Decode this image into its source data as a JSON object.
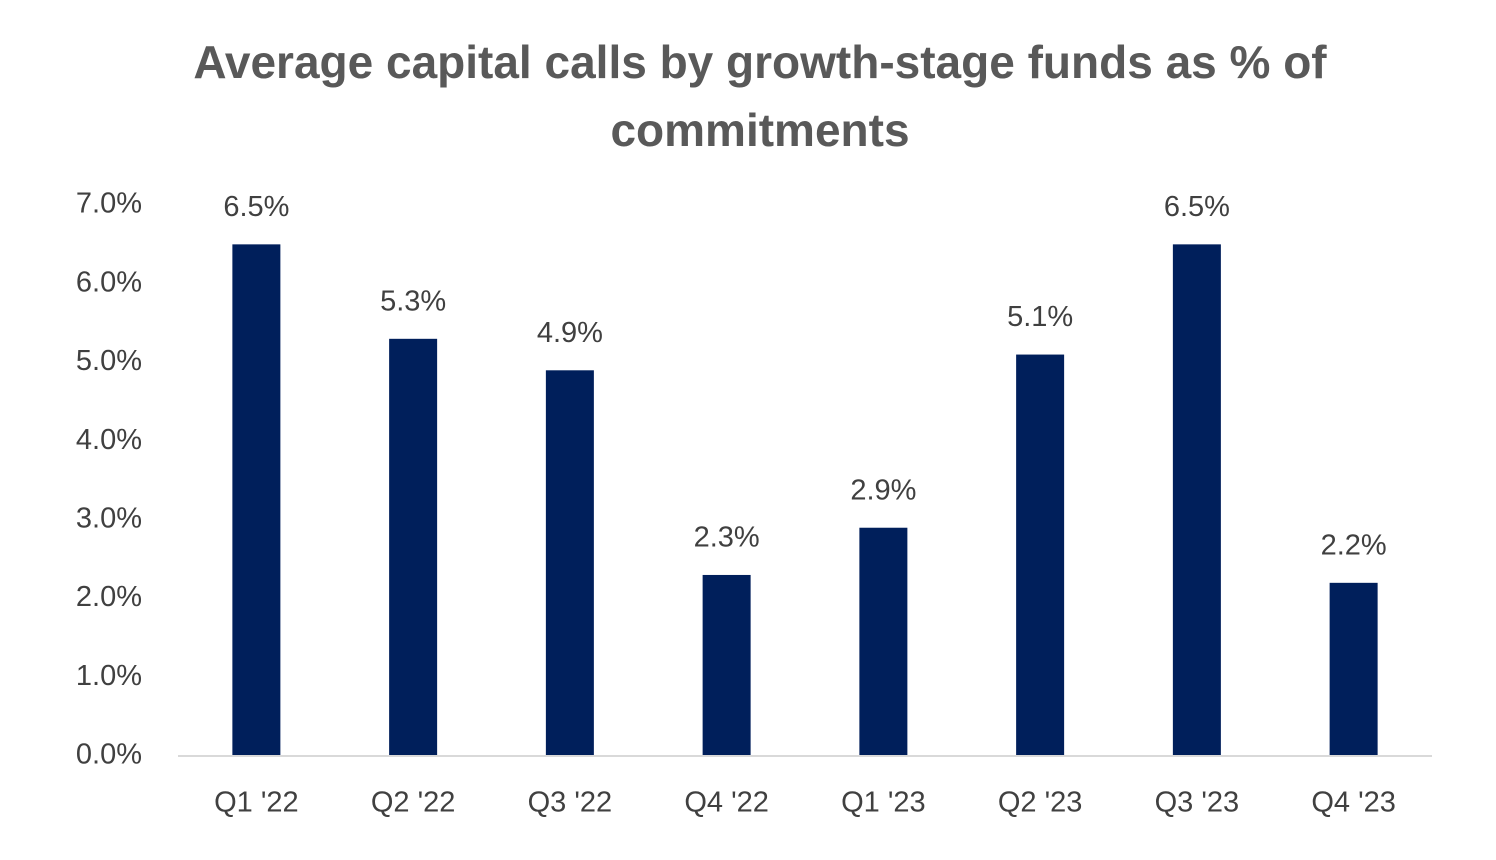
{
  "chart_data": {
    "type": "bar",
    "title": "Average capital calls by growth-stage funds as % of commitments",
    "categories": [
      "Q1 '22",
      "Q2 '22",
      "Q3 '22",
      "Q4 '22",
      "Q1 '23",
      "Q2 '23",
      "Q3 '23",
      "Q4 '23"
    ],
    "values": [
      6.5,
      5.3,
      4.9,
      2.3,
      2.9,
      5.1,
      6.5,
      2.2
    ],
    "value_labels": [
      "6.5%",
      "5.3%",
      "4.9%",
      "2.3%",
      "2.9%",
      "5.1%",
      "6.5%",
      "2.2%"
    ],
    "color": "#001f5b",
    "ylim": [
      0,
      7
    ],
    "yticks": [
      {
        "value": 0,
        "label": "0.0%"
      },
      {
        "value": 1,
        "label": "1.0%"
      },
      {
        "value": 2,
        "label": "2.0%"
      },
      {
        "value": 3,
        "label": "3.0%"
      },
      {
        "value": 4,
        "label": "4.0%"
      },
      {
        "value": 5,
        "label": "5.0%"
      },
      {
        "value": 6,
        "label": "6.0%"
      },
      {
        "value": 7,
        "label": "7.0%"
      }
    ],
    "grid": false
  }
}
